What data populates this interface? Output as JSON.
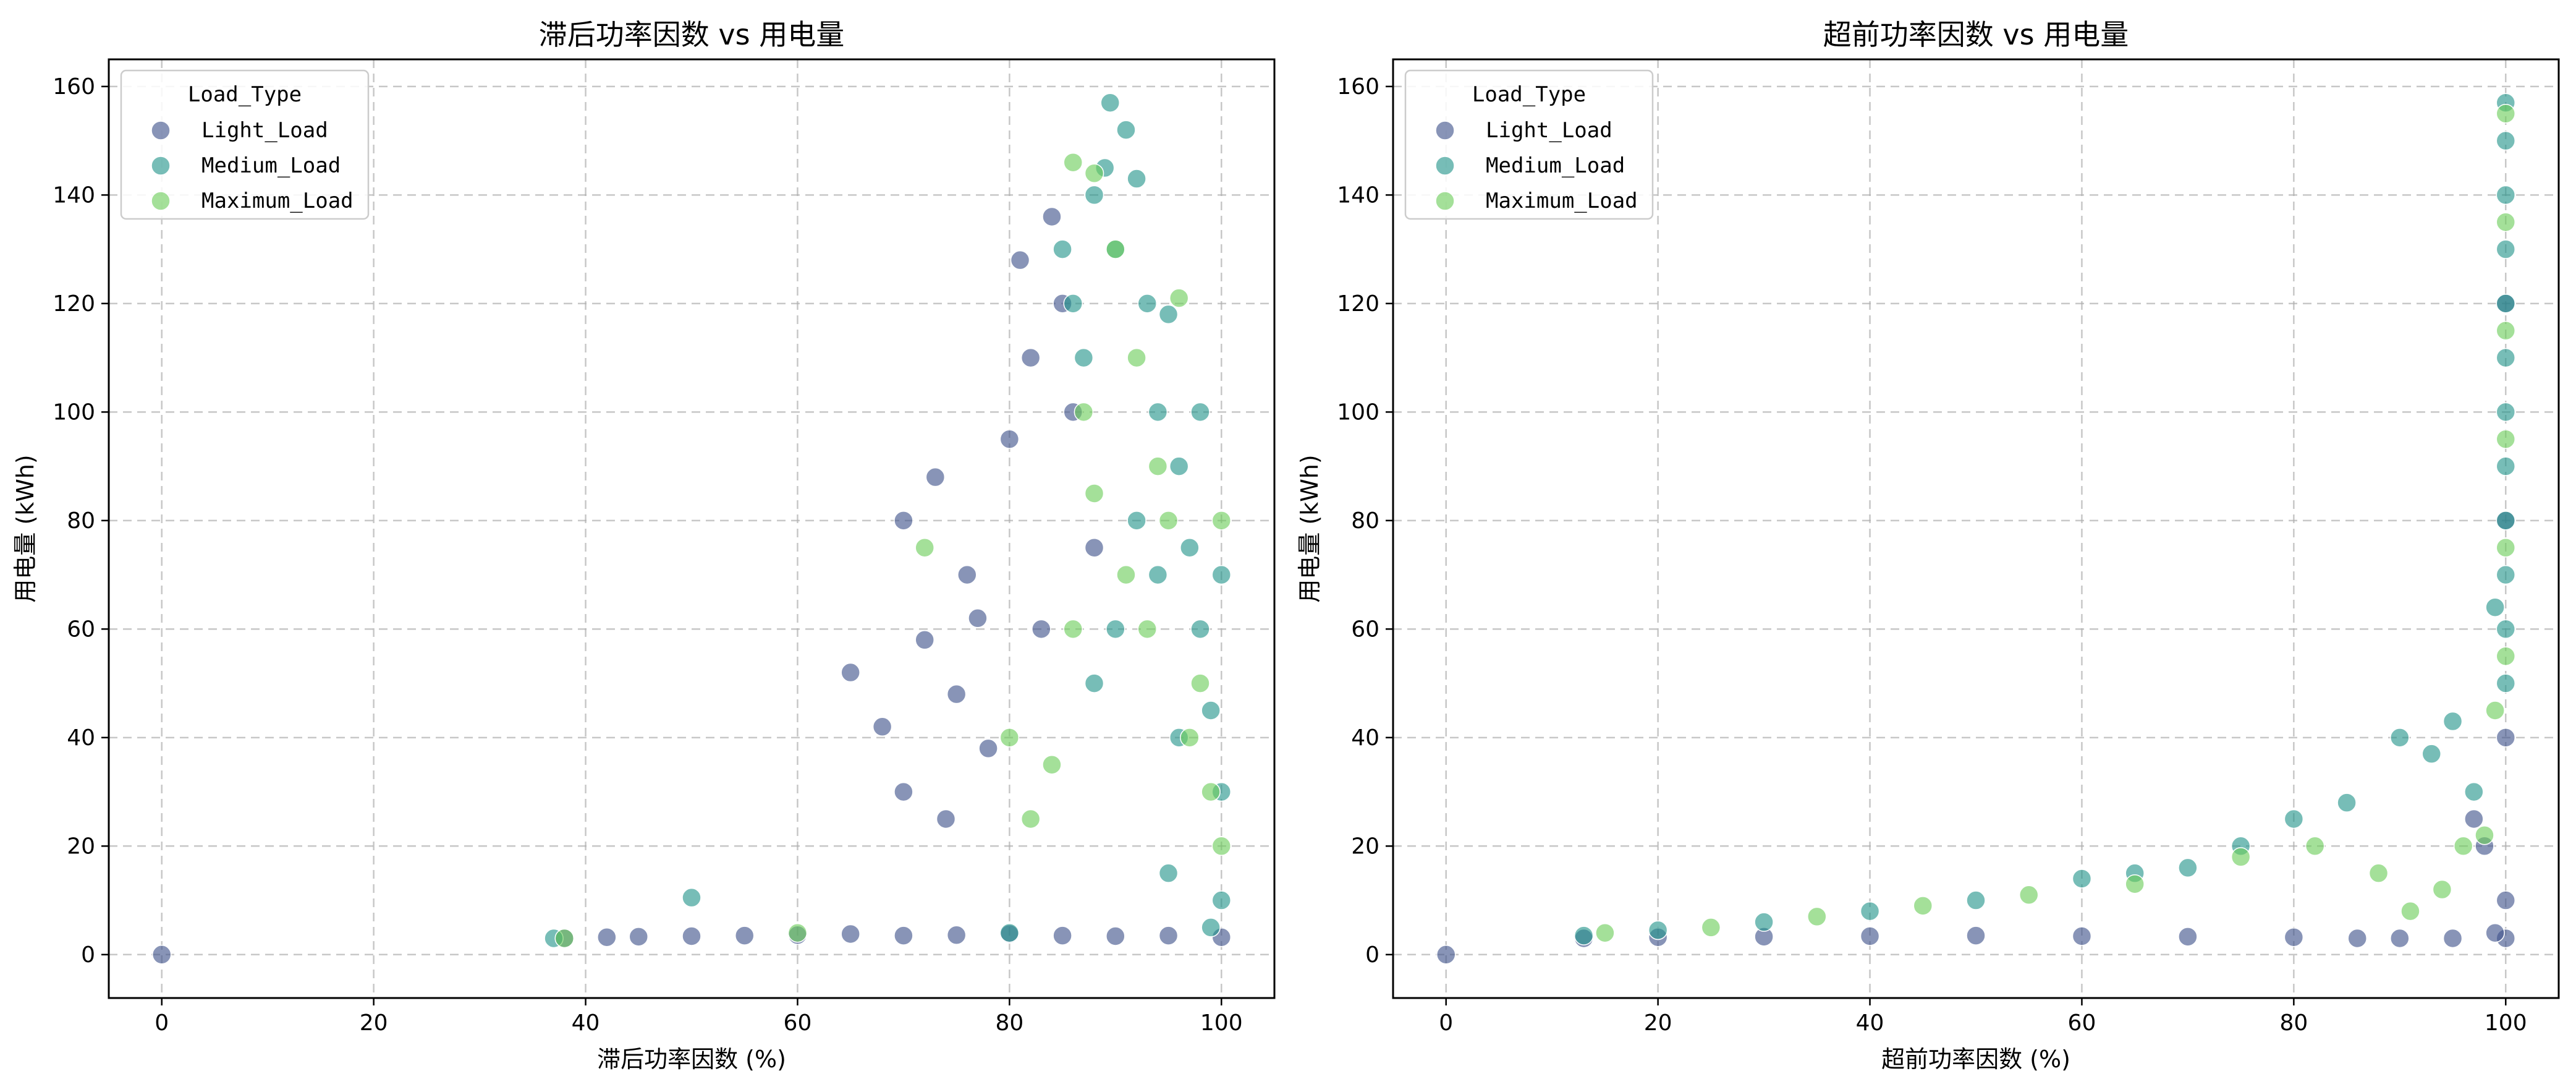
{
  "colors": {
    "Light_Load": "#3f528b",
    "Medium_Load": "#23958b",
    "Maximum_Load": "#6ccd5a",
    "grid": "#b0b0b0"
  },
  "chart_data": [
    {
      "type": "scatter",
      "title": "滞后功率因数 vs 用电量",
      "xlabel": "滞后功率因数 (%)",
      "ylabel": "用电量 (kWh)",
      "xlim": [
        -5,
        105
      ],
      "ylim": [
        -8,
        165
      ],
      "xticks": [
        0,
        20,
        40,
        60,
        80,
        100
      ],
      "yticks": [
        0,
        20,
        40,
        60,
        80,
        100,
        120,
        140,
        160
      ],
      "grid": true,
      "legend": {
        "title": "Load_Type",
        "placement": "top-left",
        "entries": [
          "Light_Load",
          "Medium_Load",
          "Maximum_Load"
        ]
      },
      "series": [
        {
          "name": "Light_Load",
          "points": [
            [
              0,
              0
            ],
            [
              38,
              3
            ],
            [
              42,
              3.2
            ],
            [
              45,
              3.3
            ],
            [
              50,
              3.4
            ],
            [
              55,
              3.5
            ],
            [
              60,
              3.6
            ],
            [
              65,
              3.8
            ],
            [
              70,
              3.5
            ],
            [
              75,
              3.6
            ],
            [
              80,
              3.8
            ],
            [
              85,
              3.5
            ],
            [
              90,
              3.4
            ],
            [
              95,
              3.5
            ],
            [
              100,
              3.2
            ],
            [
              65,
              52
            ],
            [
              68,
              42
            ],
            [
              70,
              30
            ],
            [
              72,
              58
            ],
            [
              74,
              25
            ],
            [
              75,
              48
            ],
            [
              76,
              70
            ],
            [
              78,
              38
            ],
            [
              80,
              95
            ],
            [
              81,
              128
            ],
            [
              82,
              110
            ],
            [
              83,
              60
            ],
            [
              84,
              136
            ],
            [
              85,
              120
            ],
            [
              86,
              100
            ],
            [
              88,
              75
            ],
            [
              70,
              80
            ],
            [
              73,
              88
            ],
            [
              77,
              62
            ]
          ]
        },
        {
          "name": "Medium_Load",
          "points": [
            [
              37,
              3
            ],
            [
              50,
              10.5
            ],
            [
              80,
              4
            ],
            [
              85,
              130
            ],
            [
              86,
              120
            ],
            [
              87,
              110
            ],
            [
              88,
              140
            ],
            [
              89,
              145
            ],
            [
              89.5,
              157
            ],
            [
              90,
              130
            ],
            [
              91,
              152
            ],
            [
              92,
              143
            ],
            [
              93,
              120
            ],
            [
              94,
              100
            ],
            [
              95,
              118
            ],
            [
              96,
              90
            ],
            [
              97,
              75
            ],
            [
              98,
              60
            ],
            [
              99,
              45
            ],
            [
              100,
              30
            ],
            [
              100,
              10
            ],
            [
              99,
              5
            ],
            [
              95,
              15
            ],
            [
              90,
              60
            ],
            [
              88,
              50
            ],
            [
              92,
              80
            ],
            [
              94,
              70
            ],
            [
              96,
              40
            ],
            [
              98,
              100
            ],
            [
              100,
              70
            ]
          ]
        },
        {
          "name": "Maximum_Load",
          "points": [
            [
              38,
              3
            ],
            [
              60,
              4
            ],
            [
              72,
              75
            ],
            [
              80,
              40
            ],
            [
              82,
              25
            ],
            [
              84,
              35
            ],
            [
              86,
              146
            ],
            [
              88,
              144
            ],
            [
              90,
              130
            ],
            [
              92,
              110
            ],
            [
              94,
              90
            ],
            [
              96,
              121
            ],
            [
              98,
              50
            ],
            [
              100,
              80
            ],
            [
              87,
              100
            ],
            [
              91,
              70
            ],
            [
              93,
              60
            ],
            [
              95,
              80
            ],
            [
              97,
              40
            ],
            [
              99,
              30
            ],
            [
              100,
              20
            ],
            [
              86,
              60
            ],
            [
              88,
              85
            ]
          ]
        }
      ]
    },
    {
      "type": "scatter",
      "title": "超前功率因数 vs 用电量",
      "xlabel": "超前功率因数 (%)",
      "ylabel": "用电量 (kWh)",
      "xlim": [
        -5,
        105
      ],
      "ylim": [
        -8,
        165
      ],
      "xticks": [
        0,
        20,
        40,
        60,
        80,
        100
      ],
      "yticks": [
        0,
        20,
        40,
        60,
        80,
        100,
        120,
        140,
        160
      ],
      "grid": true,
      "legend": {
        "title": "Load_Type",
        "placement": "top-left",
        "entries": [
          "Light_Load",
          "Medium_Load",
          "Maximum_Load"
        ]
      },
      "series": [
        {
          "name": "Light_Load",
          "points": [
            [
              0,
              0
            ],
            [
              13,
              3
            ],
            [
              20,
              3.2
            ],
            [
              30,
              3.3
            ],
            [
              40,
              3.4
            ],
            [
              50,
              3.5
            ],
            [
              60,
              3.4
            ],
            [
              70,
              3.3
            ],
            [
              80,
              3.2
            ],
            [
              86,
              3
            ],
            [
              90,
              3
            ],
            [
              95,
              3
            ],
            [
              100,
              3
            ],
            [
              100,
              10
            ],
            [
              100,
              40
            ],
            [
              100,
              80
            ],
            [
              100,
              120
            ],
            [
              99,
              4
            ],
            [
              98,
              20
            ],
            [
              97,
              25
            ]
          ]
        },
        {
          "name": "Medium_Load",
          "points": [
            [
              13,
              3.5
            ],
            [
              20,
              4.5
            ],
            [
              30,
              6
            ],
            [
              40,
              8
            ],
            [
              50,
              10
            ],
            [
              60,
              14
            ],
            [
              65,
              15
            ],
            [
              70,
              16
            ],
            [
              75,
              20
            ],
            [
              80,
              25
            ],
            [
              85,
              28
            ],
            [
              90,
              40
            ],
            [
              93,
              37
            ],
            [
              95,
              43
            ],
            [
              97,
              30
            ],
            [
              99,
              64
            ],
            [
              100,
              157
            ],
            [
              100,
              150
            ],
            [
              100,
              140
            ],
            [
              100,
              130
            ],
            [
              100,
              120
            ],
            [
              100,
              110
            ],
            [
              100,
              100
            ],
            [
              100,
              90
            ],
            [
              100,
              80
            ],
            [
              100,
              70
            ],
            [
              100,
              60
            ],
            [
              100,
              50
            ]
          ]
        },
        {
          "name": "Maximum_Load",
          "points": [
            [
              15,
              4
            ],
            [
              25,
              5
            ],
            [
              35,
              7
            ],
            [
              45,
              9
            ],
            [
              55,
              11
            ],
            [
              65,
              13
            ],
            [
              75,
              18
            ],
            [
              82,
              20
            ],
            [
              88,
              15
            ],
            [
              91,
              8
            ],
            [
              94,
              12
            ],
            [
              96,
              20
            ],
            [
              98,
              22
            ],
            [
              99,
              45
            ],
            [
              100,
              155
            ],
            [
              100,
              135
            ],
            [
              100,
              115
            ],
            [
              100,
              95
            ],
            [
              100,
              75
            ],
            [
              100,
              55
            ]
          ]
        }
      ]
    }
  ]
}
